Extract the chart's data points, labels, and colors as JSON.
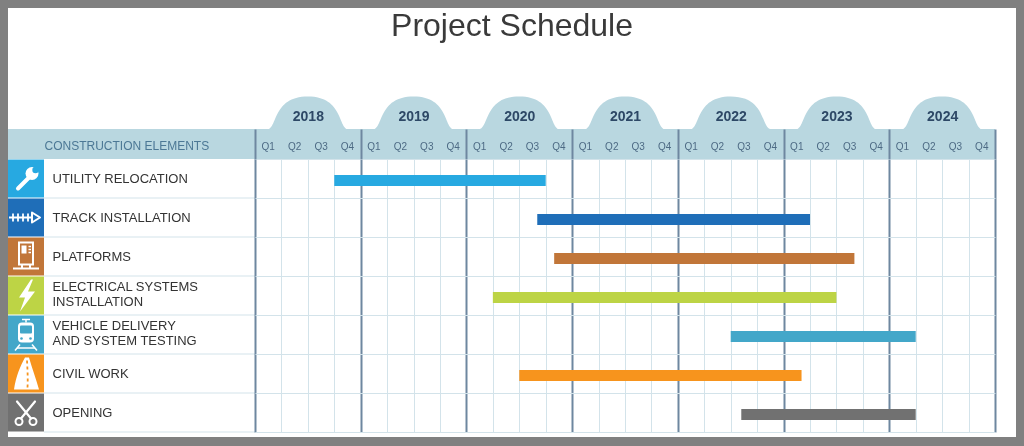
{
  "chart_data": {
    "type": "bar",
    "orientation": "horizontal",
    "title": "Project Schedule",
    "ylabel": "CONSTRUCTION ELEMENTS",
    "categories": [
      "UTILITY RELOCATION",
      "TRACK INSTALLATION",
      "PLATFORMS",
      "ELECTRICAL SYSTEMS INSTALLATION",
      "VEHICLE DELIVERY AND SYSTEM TESTING",
      "CIVIL WORK",
      "OPENING"
    ],
    "base": [
      2018.75,
      2020.67,
      2020.83,
      2020.25,
      2022.5,
      2020.5,
      2022.6
    ],
    "values": [
      2,
      2.58,
      2.84,
      3.25,
      1.75,
      2.67,
      1.65
    ],
    "colors": [
      "#27a9e1",
      "#1f6eb8",
      "#c17639",
      "#bdd445",
      "#43a7c9",
      "#f7941d",
      "#717171"
    ],
    "xlim": [
      2018,
      2025
    ],
    "xticks": [
      {
        "value": 2018,
        "label": null
      },
      {
        "value": 2018.25,
        "label": null
      },
      {
        "value": 2018.5,
        "label": "2018"
      },
      {
        "value": 2018.75,
        "label": null
      },
      {
        "value": 2019,
        "label": null
      },
      {
        "value": 2019.25,
        "label": null
      },
      {
        "value": 2019.5,
        "label": "2019"
      },
      {
        "value": 2019.75,
        "label": null
      },
      {
        "value": 2020,
        "label": null
      },
      {
        "value": 2020.25,
        "label": null
      },
      {
        "value": 2020.5,
        "label": "2020"
      },
      {
        "value": 2020.75,
        "label": null
      },
      {
        "value": 2021,
        "label": null
      },
      {
        "value": 2021.25,
        "label": null
      },
      {
        "value": 2021.5,
        "label": "2021"
      },
      {
        "value": 2021.75,
        "label": null
      },
      {
        "value": 2022,
        "label": null
      },
      {
        "value": 2022.25,
        "label": null
      },
      {
        "value": 2022.5,
        "label": "2022"
      },
      {
        "value": 2022.75,
        "label": null
      },
      {
        "value": 2023,
        "label": null
      },
      {
        "value": 2023.25,
        "label": null
      },
      {
        "value": 2023.5,
        "label": "2023"
      },
      {
        "value": 2023.75,
        "label": null
      },
      {
        "value": 2024,
        "label": null
      },
      {
        "value": 2024.25,
        "label": null
      },
      {
        "value": 2024.5,
        "label": "2024"
      },
      {
        "value": 2024.75,
        "label": null
      },
      {
        "value": 2025,
        "label": null
      }
    ],
    "annotations": [
      "Q1",
      "Q2",
      "Q3",
      "Q4",
      "Q1",
      "Q2",
      "Q3",
      "Q4",
      "Q1",
      "Q2",
      "Q3",
      "Q4",
      "Q1",
      "Q2",
      "Q3",
      "Q4",
      "Q1",
      "Q2",
      "Q3",
      "Q4",
      "Q1",
      "Q2",
      "Q3",
      "Q4",
      "Q1",
      "Q2",
      "Q3",
      "Q4"
    ],
    "grid": true
  }
}
